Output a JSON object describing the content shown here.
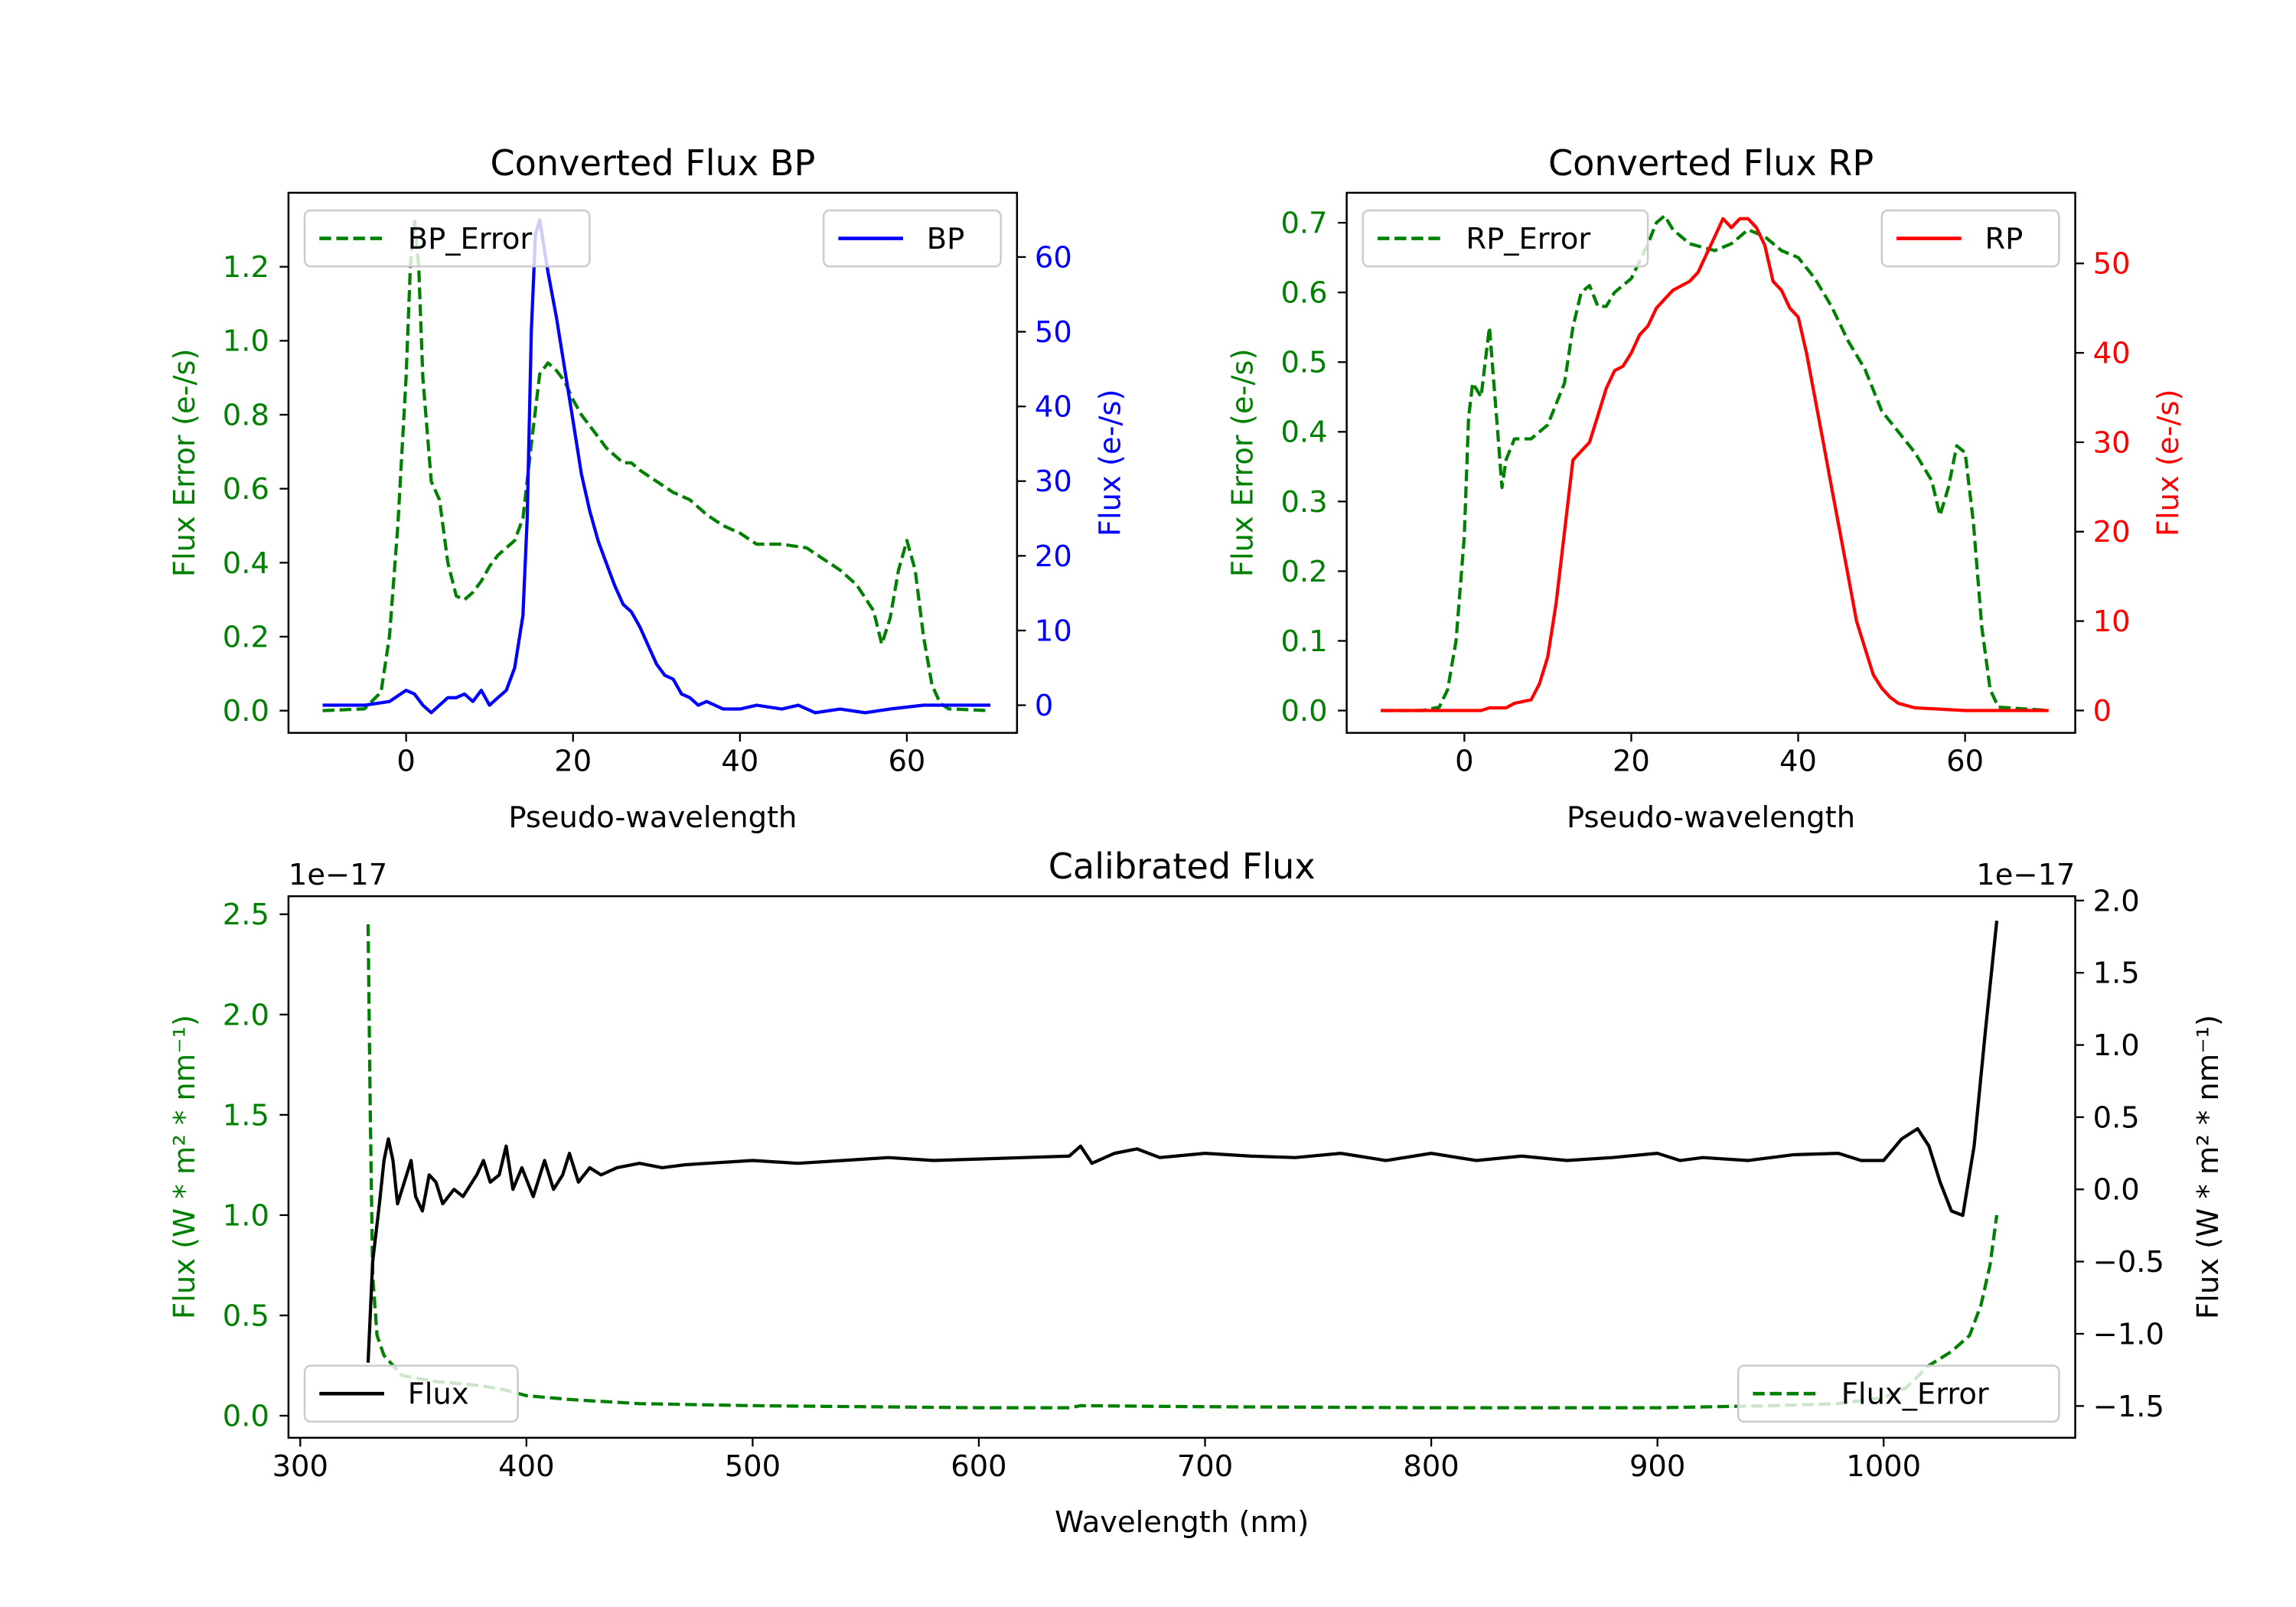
{
  "colors": {
    "error": "#008000",
    "bp": "#0000ff",
    "rp": "#ff0000",
    "flux": "#000000",
    "axis": "#000000"
  },
  "chart_data": [
    {
      "type": "line",
      "title": "Converted Flux BP",
      "xlabel": "Pseudo-wavelength",
      "ylabel_left": "Flux Error (e-/s)",
      "ylabel_right": "Flux (e-/s)",
      "xlim": [
        -14.1,
        73.2
      ],
      "ylim_left": [
        -0.06,
        1.4
      ],
      "ylim_right": [
        -3.7,
        68.6
      ],
      "xticks": [
        0,
        20,
        40,
        60
      ],
      "xtick_labels": [
        "0",
        "20",
        "40",
        "60"
      ],
      "yticks_left": [
        0.0,
        0.2,
        0.4,
        0.6,
        0.8,
        1.0,
        1.2
      ],
      "ytick_labels_left": [
        "0.0",
        "0.2",
        "0.4",
        "0.6",
        "0.8",
        "1.0",
        "1.2"
      ],
      "yticks_right": [
        0,
        10,
        20,
        30,
        40,
        50,
        60
      ],
      "ytick_labels_right": [
        "0",
        "10",
        "20",
        "30",
        "40",
        "50",
        "60"
      ],
      "left_color": "#008000",
      "right_color": "#0000ff",
      "legend_left": {
        "label": "BP_Error",
        "placement": "upper left"
      },
      "legend_right": {
        "label": "BP",
        "placement": "upper right"
      },
      "series": [
        {
          "name": "BP_Error",
          "axis": "left",
          "style": "dashed",
          "color": "#008000",
          "x": [
            -10,
            -5,
            -3,
            -2,
            -1,
            0,
            0.5,
            1,
            1.5,
            2,
            3,
            4,
            5,
            6,
            7,
            8,
            9,
            10,
            11,
            12,
            13,
            14,
            15,
            16,
            17,
            18,
            19,
            20,
            21,
            22,
            23,
            24,
            25,
            26,
            27,
            28,
            30,
            32,
            34,
            36,
            38,
            40,
            42,
            45,
            48,
            50,
            52,
            54,
            56,
            57,
            58,
            59,
            60,
            61,
            62,
            63,
            64,
            65,
            70
          ],
          "y": [
            0,
            0.005,
            0.05,
            0.2,
            0.5,
            0.9,
            1.2,
            1.33,
            1.2,
            0.9,
            0.62,
            0.57,
            0.4,
            0.31,
            0.3,
            0.32,
            0.35,
            0.39,
            0.42,
            0.44,
            0.46,
            0.52,
            0.72,
            0.91,
            0.94,
            0.92,
            0.89,
            0.84,
            0.8,
            0.77,
            0.74,
            0.71,
            0.69,
            0.67,
            0.67,
            0.65,
            0.62,
            0.59,
            0.57,
            0.53,
            0.5,
            0.48,
            0.45,
            0.45,
            0.44,
            0.41,
            0.38,
            0.34,
            0.27,
            0.18,
            0.25,
            0.38,
            0.46,
            0.38,
            0.2,
            0.07,
            0.02,
            0.005,
            0
          ]
        },
        {
          "name": "BP",
          "axis": "right",
          "style": "solid",
          "color": "#0000ff",
          "x": [
            -10,
            -5,
            -2,
            0,
            1,
            2,
            3,
            4,
            5,
            6,
            7,
            8,
            9,
            10,
            11,
            12,
            13,
            14,
            14.5,
            15,
            15.5,
            16,
            17,
            18,
            19,
            20,
            21,
            22,
            23,
            24,
            25,
            26,
            27,
            28,
            29,
            30,
            31,
            32,
            33,
            34,
            35,
            36,
            37,
            38,
            40,
            42,
            45,
            47,
            49,
            52,
            55,
            58,
            62,
            70
          ],
          "y": [
            0,
            0,
            0.5,
            2,
            1.5,
            0,
            -1,
            0,
            1,
            1,
            1.5,
            0.5,
            2,
            0,
            1,
            2,
            5,
            12,
            25,
            50,
            63,
            65,
            58,
            52,
            45,
            38,
            31,
            26,
            22,
            19,
            16,
            13.5,
            12.5,
            10.5,
            8,
            5.5,
            4,
            3.5,
            1.5,
            1,
            0,
            0.5,
            0,
            -0.5,
            -0.5,
            0,
            -0.5,
            0,
            -1,
            -0.5,
            -1,
            -0.5,
            0,
            0
          ]
        }
      ]
    },
    {
      "type": "line",
      "title": "Converted Flux RP",
      "xlabel": "Pseudo-wavelength",
      "ylabel_left": "Flux Error (e-/s)",
      "ylabel_right": "Flux (e-/s)",
      "xlim": [
        -14.1,
        73.2
      ],
      "ylim_left": [
        -0.032,
        0.743
      ],
      "ylim_right": [
        -2.5,
        57.9
      ],
      "xticks": [
        0,
        20,
        40,
        60
      ],
      "xtick_labels": [
        "0",
        "20",
        "40",
        "60"
      ],
      "yticks_left": [
        0.0,
        0.1,
        0.2,
        0.3,
        0.4,
        0.5,
        0.6,
        0.7
      ],
      "ytick_labels_left": [
        "0.0",
        "0.1",
        "0.2",
        "0.3",
        "0.4",
        "0.5",
        "0.6",
        "0.7"
      ],
      "yticks_right": [
        0,
        10,
        20,
        30,
        40,
        50
      ],
      "ytick_labels_right": [
        "0",
        "10",
        "20",
        "30",
        "40",
        "50"
      ],
      "left_color": "#008000",
      "right_color": "#ff0000",
      "legend_left": {
        "label": "RP_Error",
        "placement": "upper left"
      },
      "legend_right": {
        "label": "RP",
        "placement": "upper right"
      },
      "series": [
        {
          "name": "RP_Error",
          "axis": "left",
          "style": "dashed",
          "color": "#008000",
          "x": [
            -10,
            -5,
            -3,
            -2,
            -1,
            0,
            0.5,
            1,
            2,
            2.5,
            3,
            4,
            4.5,
            5,
            6,
            8,
            10,
            12,
            13,
            14,
            15,
            16,
            17,
            18,
            20,
            22,
            23,
            24,
            25,
            27,
            30,
            32,
            34,
            36,
            38,
            40,
            42,
            44,
            46,
            48,
            50,
            52,
            54,
            55,
            56,
            57,
            58,
            59,
            60,
            61,
            62,
            63,
            64,
            70
          ],
          "y": [
            0,
            0,
            0.005,
            0.03,
            0.1,
            0.25,
            0.42,
            0.47,
            0.45,
            0.5,
            0.55,
            0.4,
            0.32,
            0.36,
            0.39,
            0.39,
            0.41,
            0.47,
            0.55,
            0.6,
            0.61,
            0.58,
            0.58,
            0.6,
            0.62,
            0.67,
            0.7,
            0.71,
            0.69,
            0.67,
            0.66,
            0.67,
            0.69,
            0.68,
            0.66,
            0.65,
            0.62,
            0.58,
            0.53,
            0.49,
            0.43,
            0.4,
            0.37,
            0.35,
            0.33,
            0.28,
            0.32,
            0.38,
            0.37,
            0.27,
            0.12,
            0.03,
            0.005,
            0
          ]
        },
        {
          "name": "RP",
          "axis": "right",
          "style": "solid",
          "color": "#ff0000",
          "x": [
            -10,
            2,
            3,
            5,
            6,
            8,
            9,
            10,
            11,
            12,
            13,
            14,
            15,
            16,
            17,
            18,
            19,
            20,
            21,
            22,
            23,
            24,
            25,
            27,
            28,
            29,
            30,
            31,
            32,
            33,
            34,
            35,
            36,
            37,
            38,
            39,
            40,
            41,
            42,
            43,
            44,
            45,
            46,
            47,
            48,
            49,
            50,
            51,
            52,
            54,
            60,
            70
          ],
          "y": [
            0,
            0,
            0.3,
            0.3,
            0.8,
            1.2,
            3,
            6,
            12,
            20,
            28,
            29,
            30,
            33,
            36,
            38,
            38.5,
            40,
            42,
            43,
            45,
            46,
            47,
            48,
            49,
            51,
            53,
            55,
            54,
            55,
            55,
            54,
            52,
            48,
            47,
            45,
            44,
            40,
            35,
            30,
            25,
            20,
            15,
            10,
            7,
            4,
            2.5,
            1.5,
            0.8,
            0.3,
            0,
            0
          ]
        }
      ]
    },
    {
      "type": "line",
      "title": "Calibrated Flux",
      "xlabel": "Wavelength (nm)",
      "ylabel_left": "Flux (W * m² * nm⁻¹)",
      "ylabel_right": "Flux (W * m² * nm⁻¹)",
      "offset_left": "1e−17",
      "offset_right": "1e−17",
      "xlim": [
        294.8,
        1084.7
      ],
      "ylim_left": [
        -0.11,
        2.59
      ],
      "ylim_right": [
        -1.72,
        2.03
      ],
      "xticks": [
        300,
        400,
        500,
        600,
        700,
        800,
        900,
        1000
      ],
      "xtick_labels": [
        "300",
        "400",
        "500",
        "600",
        "700",
        "800",
        "900",
        "1000"
      ],
      "yticks_left": [
        0.0,
        0.5,
        1.0,
        1.5,
        2.0,
        2.5
      ],
      "ytick_labels_left": [
        "0.0",
        "0.5",
        "1.0",
        "1.5",
        "2.0",
        "2.5"
      ],
      "yticks_right": [
        -1.5,
        -1.0,
        -0.5,
        0.0,
        0.5,
        1.0,
        1.5,
        2.0
      ],
      "ytick_labels_right": [
        "−1.5",
        "−1.0",
        "−0.5",
        "0.0",
        "0.5",
        "1.0",
        "1.5",
        "2.0"
      ],
      "left_color": "#008000",
      "right_color": "#000000",
      "legend_left": {
        "label": "Flux",
        "placement": "lower left"
      },
      "legend_right": {
        "label": "Flux_Error",
        "placement": "lower right"
      },
      "series": [
        {
          "name": "Flux_Error",
          "axis": "left",
          "style": "dashed",
          "color": "#008000",
          "x": [
            330,
            331,
            332,
            334,
            337,
            345,
            360,
            380,
            390,
            400,
            420,
            450,
            500,
            600,
            640,
            645,
            700,
            800,
            900,
            950,
            980,
            1000,
            1010,
            1020,
            1030,
            1038,
            1043,
            1047,
            1050
          ],
          "y": [
            2.45,
            1.5,
            0.7,
            0.4,
            0.3,
            0.2,
            0.17,
            0.15,
            0.13,
            0.1,
            0.08,
            0.06,
            0.05,
            0.04,
            0.04,
            0.05,
            0.045,
            0.04,
            0.04,
            0.05,
            0.06,
            0.09,
            0.14,
            0.25,
            0.32,
            0.4,
            0.55,
            0.75,
            1.0
          ]
        },
        {
          "name": "Flux",
          "axis": "right",
          "style": "solid",
          "color": "#000000",
          "x": [
            330,
            332,
            335,
            337,
            339,
            341,
            343,
            346,
            349,
            351,
            354,
            357,
            360,
            363,
            368,
            372,
            378,
            381,
            384,
            388,
            391,
            394,
            398,
            403,
            408,
            412,
            416,
            419,
            423,
            428,
            433,
            440,
            450,
            460,
            470,
            480,
            500,
            520,
            540,
            560,
            580,
            600,
            620,
            640,
            645,
            650,
            660,
            670,
            680,
            700,
            720,
            740,
            760,
            780,
            800,
            820,
            840,
            860,
            880,
            900,
            910,
            920,
            940,
            960,
            980,
            990,
            1000,
            1008,
            1015,
            1020,
            1025,
            1030,
            1035,
            1040,
            1045,
            1050
          ],
          "y": [
            -1.2,
            -0.5,
            -0.1,
            0.2,
            0.35,
            0.2,
            -0.1,
            0.05,
            0.2,
            -0.05,
            -0.15,
            0.1,
            0.05,
            -0.1,
            0.0,
            -0.05,
            0.1,
            0.2,
            0.05,
            0.1,
            0.3,
            0.0,
            0.15,
            -0.05,
            0.2,
            0.0,
            0.1,
            0.25,
            0.05,
            0.15,
            0.1,
            0.15,
            0.18,
            0.15,
            0.17,
            0.18,
            0.2,
            0.18,
            0.2,
            0.22,
            0.2,
            0.21,
            0.22,
            0.23,
            0.3,
            0.18,
            0.25,
            0.28,
            0.22,
            0.25,
            0.23,
            0.22,
            0.25,
            0.2,
            0.25,
            0.2,
            0.23,
            0.2,
            0.22,
            0.25,
            0.2,
            0.22,
            0.2,
            0.24,
            0.25,
            0.2,
            0.2,
            0.35,
            0.42,
            0.3,
            0.05,
            -0.15,
            -0.18,
            0.3,
            1.1,
            1.86
          ]
        }
      ]
    }
  ]
}
